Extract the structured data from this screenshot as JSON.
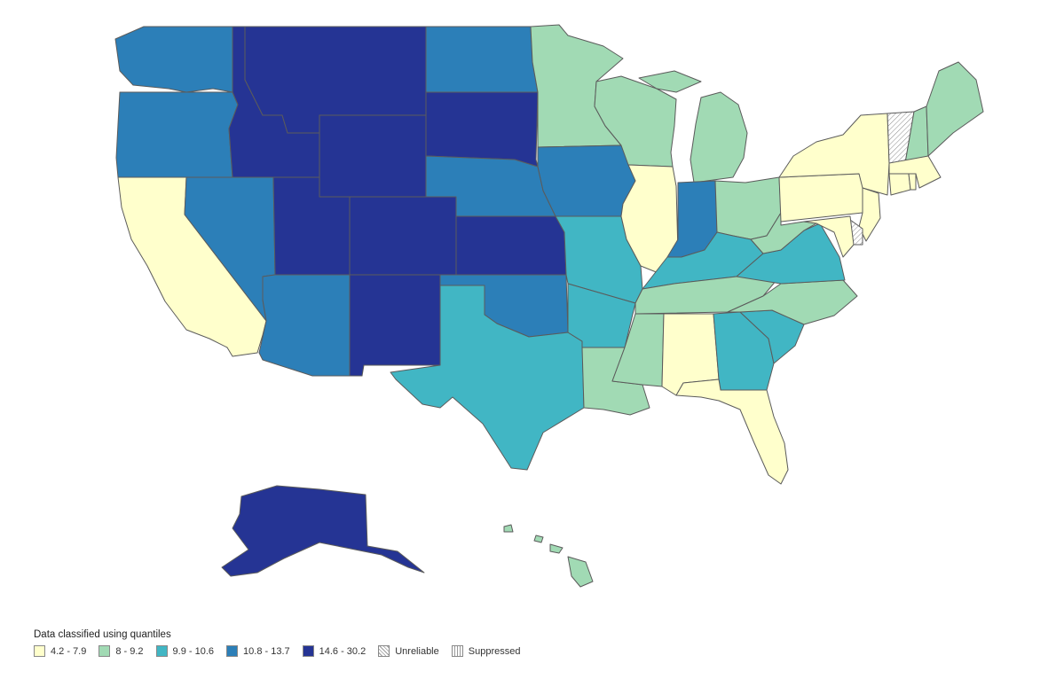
{
  "legend": {
    "title": "Data classified using quantiles",
    "classes": [
      {
        "label": "4.2 - 7.9",
        "color": "#ffffcc"
      },
      {
        "label": "8 - 9.2",
        "color": "#a1dab4"
      },
      {
        "label": "9.9 - 10.6",
        "color": "#41b6c4"
      },
      {
        "label": "10.8 - 13.7",
        "color": "#2c7fb8"
      },
      {
        "label": "14.6 - 30.2",
        "color": "#253494"
      }
    ],
    "unreliable_label": "Unreliable",
    "suppressed_label": "Suppressed"
  },
  "map_data": {
    "type": "choropleth",
    "region": "United States",
    "classification": "quantiles",
    "states": {
      "WA": 3,
      "OR": 3,
      "CA": 0,
      "NV": 3,
      "ID": 4,
      "MT": 4,
      "WY": 4,
      "UT": 4,
      "AZ": 3,
      "CO": 4,
      "NM": 4,
      "ND": 3,
      "SD": 4,
      "NE": 3,
      "KS": 4,
      "OK": 3,
      "TX": 2,
      "MN": 1,
      "IA": 3,
      "MO": 2,
      "AR": 2,
      "LA": 1,
      "WI": 1,
      "IL": 0,
      "MI": 1,
      "IN": 3,
      "OH": 1,
      "KY": 2,
      "TN": 1,
      "MS": 1,
      "AL": 0,
      "GA": 2,
      "FL": 0,
      "SC": 2,
      "NC": 1,
      "VA": 2,
      "WV": 1,
      "PA": 0,
      "NY": 0,
      "VT": "unreliable",
      "NH": 1,
      "ME": 1,
      "MA": 0,
      "CT": 0,
      "RI": 0,
      "NJ": 0,
      "DE": "unreliable",
      "MD": 0,
      "AK": 4,
      "HI": 1
    }
  }
}
